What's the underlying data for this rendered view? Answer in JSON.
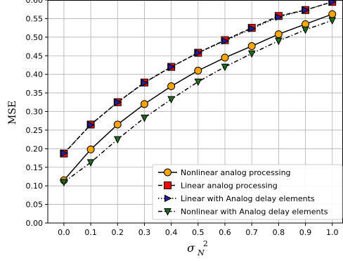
{
  "chart_data": {
    "type": "line",
    "x": [
      0.0,
      0.1,
      0.2,
      0.3,
      0.4,
      0.5,
      0.6,
      0.7,
      0.8,
      0.9,
      1.0
    ],
    "xticks": [
      "0.0",
      "0.1",
      "0.2",
      "0.3",
      "0.4",
      "0.5",
      "0.6",
      "0.7",
      "0.8",
      "0.9",
      "1.0"
    ],
    "yticks": [
      "0.00",
      "0.05",
      "0.10",
      "0.15",
      "0.20",
      "0.25",
      "0.30",
      "0.35",
      "0.40",
      "0.45",
      "0.50",
      "0.55",
      "0.60"
    ],
    "xlim": [
      -0.06,
      1.04
    ],
    "ylim": [
      0.0,
      0.6
    ],
    "xlabel": "σ²N",
    "xlabel_main": "σ",
    "xlabel_sup": "2",
    "xlabel_sub": "N",
    "ylabel": "MSE",
    "grid": true,
    "legend_position": "lower-right",
    "series": [
      {
        "name": "Nonlinear analog processing",
        "values": [
          0.115,
          0.198,
          0.265,
          0.32,
          0.368,
          0.41,
          0.445,
          0.476,
          0.508,
          0.535,
          0.562
        ],
        "color": "#000000",
        "marker": "circle",
        "marker_fill": "#FFA500",
        "line_style": "solid"
      },
      {
        "name": "Linear analog processing",
        "values": [
          0.187,
          0.265,
          0.325,
          0.378,
          0.42,
          0.458,
          0.492,
          0.525,
          0.557,
          0.573,
          0.595
        ],
        "color": "#000000",
        "marker": "square",
        "marker_fill": "#FF0000",
        "line_style": "dashed"
      },
      {
        "name": "Linear with Analog delay elements",
        "values": [
          0.188,
          0.264,
          0.325,
          0.377,
          0.42,
          0.458,
          0.49,
          0.523,
          0.554,
          0.573,
          0.595
        ],
        "color": "#000000",
        "marker": "triangle-right",
        "marker_fill": "#1F1FA0",
        "line_style": "dotted"
      },
      {
        "name": "Nonlinear with Analog delay elements",
        "values": [
          0.11,
          0.163,
          0.225,
          0.283,
          0.333,
          0.38,
          0.42,
          0.456,
          0.49,
          0.52,
          0.545
        ],
        "color": "#000000",
        "marker": "triangle-down",
        "marker_fill": "#1E6B1E",
        "line_style": "dashdot"
      }
    ]
  }
}
